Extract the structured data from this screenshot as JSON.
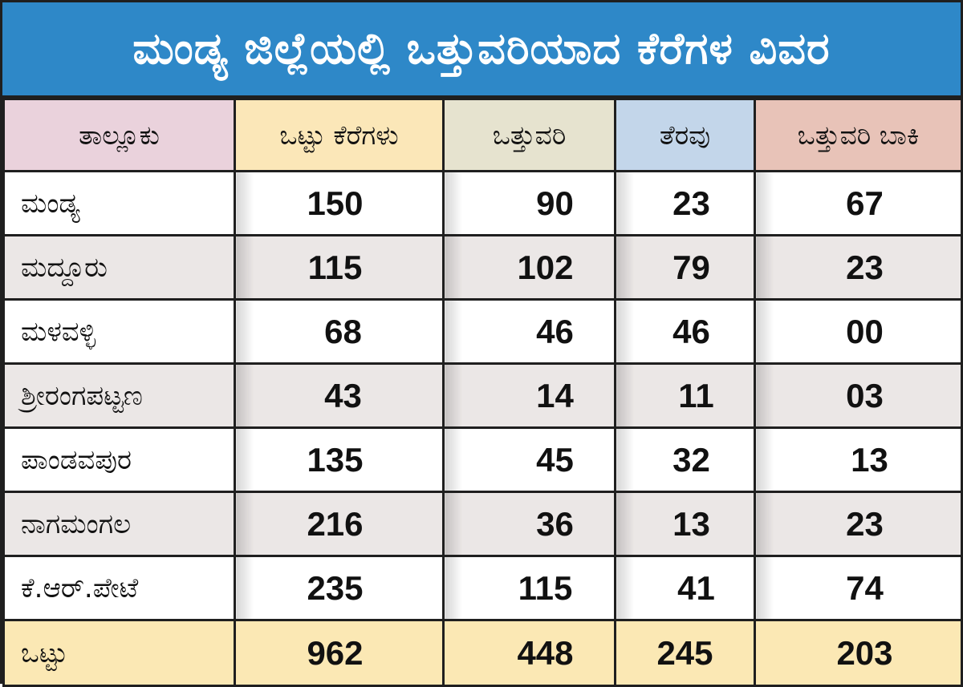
{
  "title": "ಮಂಡ್ಯ ಜಿಲ್ಲೆಯಲ್ಲಿ ಒತ್ತುವರಿಯಾದ ಕೆರೆಗಳ ವಿವರ",
  "colors": {
    "title_bg": "#2e88c8",
    "header_taluk": "#ead2dc",
    "header_total_lakes": "#fbe7b8",
    "header_encroached": "#e6e3cf",
    "header_cleared": "#c3d6ea",
    "header_pending": "#e8c3b8",
    "row_alt": "#ebe7e6",
    "total_row": "#fbe8b4"
  },
  "chart_data": {
    "type": "table",
    "title": "ಮಂಡ್ಯ ಜಿಲ್ಲೆಯಲ್ಲಿ ಒತ್ತುವರಿಯಾದ ಕೆರೆಗಳ ವಿವರ",
    "columns": [
      "ತಾಲ್ಲೂಕು",
      "ಒಟ್ಟು ಕೆರೆಗಳು",
      "ಒತ್ತುವರಿ",
      "ತೆರವು",
      "ಒತ್ತುವರಿ ಬಾಕಿ"
    ],
    "rows": [
      {
        "taluk": "ಮಂಡ್ಯ",
        "total_lakes": "150",
        "encroached": "90",
        "cleared": "23",
        "pending": "67"
      },
      {
        "taluk": "ಮದ್ದೂರು",
        "total_lakes": "115",
        "encroached": "102",
        "cleared": "79",
        "pending": "23"
      },
      {
        "taluk": "ಮಳವಳ್ಳಿ",
        "total_lakes": "68",
        "encroached": "46",
        "cleared": "46",
        "pending": "00"
      },
      {
        "taluk": "ಶ್ರೀರಂಗಪಟ್ಟಣ",
        "total_lakes": "43",
        "encroached": "14",
        "cleared": "11",
        "pending": "03"
      },
      {
        "taluk": "ಪಾಂಡವಪುರ",
        "total_lakes": "135",
        "encroached": "45",
        "cleared": "32",
        "pending": "13"
      },
      {
        "taluk": "ನಾಗಮಂಗಲ",
        "total_lakes": "216",
        "encroached": "36",
        "cleared": "13",
        "pending": "23"
      },
      {
        "taluk": "ಕೆ.ಆರ್.ಪೇಟೆ",
        "total_lakes": "235",
        "encroached": "115",
        "cleared": "41",
        "pending": "74"
      }
    ],
    "total": {
      "taluk": "ಒಟ್ಟು",
      "total_lakes": "962",
      "encroached": "448",
      "cleared": "245",
      "pending": "203"
    }
  }
}
